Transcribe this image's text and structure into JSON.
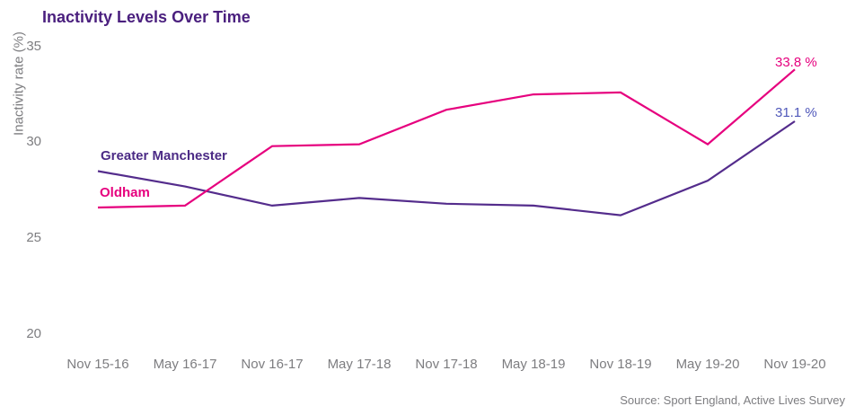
{
  "chart_data": {
    "type": "line",
    "title": "Inactivity Levels Over Time",
    "ylabel": "Inactivity rate (%)",
    "categories": [
      "Nov 15-16",
      "May 16-17",
      "Nov 16-17",
      "May 17-18",
      "Nov 17-18",
      "May 18-19",
      "Nov 18-19",
      "May 19-20",
      "Nov 19-20"
    ],
    "yticks": [
      35,
      30,
      25,
      20
    ],
    "ylim": [
      20,
      35
    ],
    "grid": false,
    "axes_drawn": false,
    "legend_position": "inline-left",
    "series": [
      {
        "name": "Greater Manchester",
        "color": "#542c8c",
        "label_color": "#4b2a85",
        "values": [
          28.5,
          27.7,
          26.7,
          27.1,
          26.8,
          26.7,
          26.2,
          28.0,
          31.1
        ],
        "end_label": "31.1 %",
        "end_label_color": "#5058ba"
      },
      {
        "name": "Oldham",
        "color": "#e6007e",
        "label_color": "#e6007e",
        "values": [
          26.6,
          26.7,
          29.8,
          29.9,
          31.7,
          32.5,
          32.6,
          29.9,
          33.8
        ],
        "end_label": "33.8 %",
        "end_label_color": "#e6007e"
      }
    ],
    "source": "Source: Sport England, Active Lives Survey",
    "axis_text_color": "#7d7d80"
  }
}
